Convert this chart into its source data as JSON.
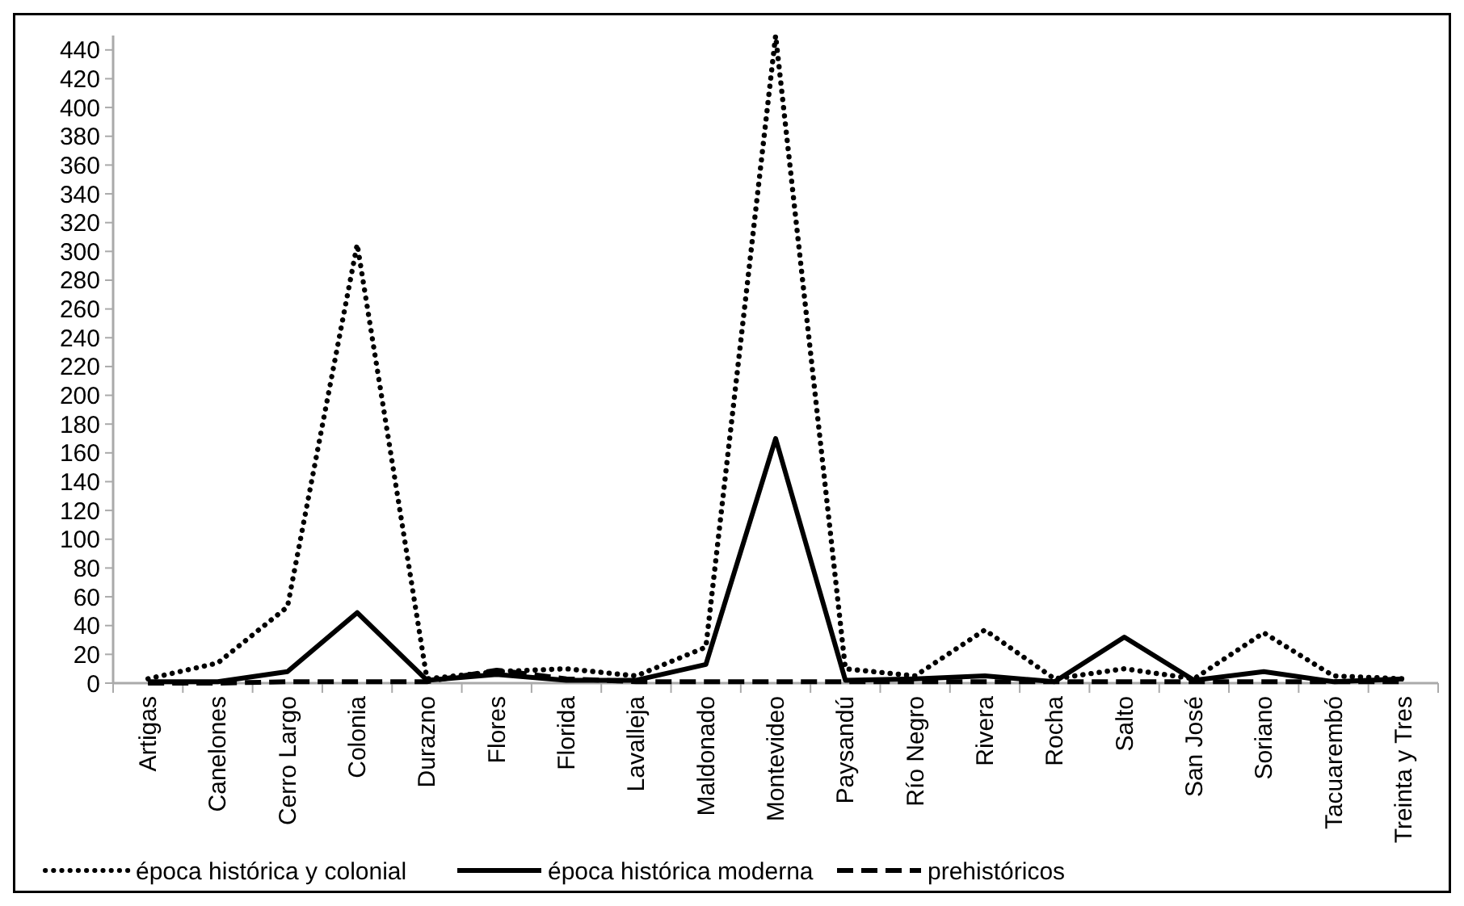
{
  "chart_data": {
    "type": "line",
    "categories": [
      "Artigas",
      "Canelones",
      "Cerro Largo",
      "Colonia",
      "Durazno",
      "Flores",
      "Florida",
      "Lavalleja",
      "Maldonado",
      "Montevideo",
      "Paysandú",
      "Río Negro",
      "Rivera",
      "Rocha",
      "Salto",
      "San José",
      "Soriano",
      "Tacuarembó",
      "Treinta y Tres"
    ],
    "series": [
      {
        "name": "época histórica y colonial",
        "color": "#000000",
        "line_style": "dotted",
        "values": [
          3,
          14,
          53,
          305,
          3,
          8,
          10,
          5,
          25,
          450,
          10,
          5,
          37,
          3,
          10,
          3,
          35,
          5,
          3
        ]
      },
      {
        "name": "época histórica moderna",
        "color": "#000000",
        "line_style": "solid",
        "values": [
          1,
          1,
          8,
          49,
          2,
          6,
          2,
          2,
          13,
          170,
          2,
          3,
          5,
          1,
          32,
          2,
          8,
          1,
          3
        ]
      },
      {
        "name": "prehistóricos",
        "color": "#000000",
        "line_style": "dashed",
        "values": [
          0,
          0,
          1,
          1,
          1,
          9,
          3,
          1,
          1,
          1,
          1,
          1,
          1,
          1,
          1,
          1,
          1,
          1,
          1
        ]
      }
    ],
    "ylim": [
      0,
      450
    ],
    "yticks": [
      0,
      20,
      40,
      60,
      80,
      100,
      120,
      140,
      160,
      180,
      200,
      220,
      240,
      260,
      280,
      300,
      320,
      340,
      360,
      380,
      400,
      420,
      440
    ],
    "grid": false,
    "legend": "bottom"
  }
}
